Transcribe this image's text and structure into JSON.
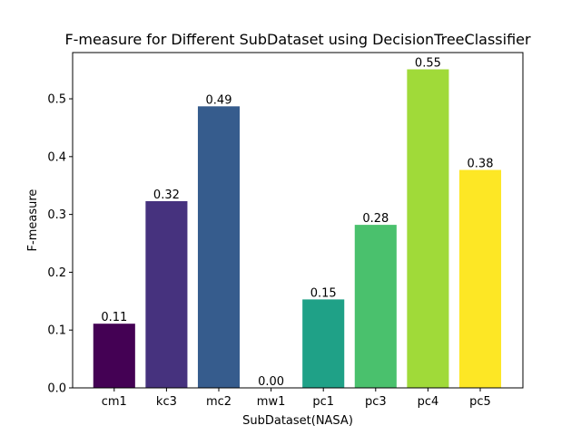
{
  "chart_data": {
    "type": "bar",
    "title": "F-measure for Different SubDataset using DecisionTreeClassifier",
    "xlabel": "SubDataset(NASA)",
    "ylabel": "F-measure",
    "categories": [
      "cm1",
      "kc3",
      "mc2",
      "mw1",
      "pc1",
      "pc3",
      "pc4",
      "pc5"
    ],
    "values": [
      0.111,
      0.323,
      0.487,
      0.0,
      0.153,
      0.282,
      0.551,
      0.377
    ],
    "data_labels": [
      "0.11",
      "0.32",
      "0.49",
      "0.00",
      "0.15",
      "0.28",
      "0.55",
      "0.38"
    ],
    "colors": [
      "#440154",
      "#46327e",
      "#365c8d",
      "#277f8e",
      "#1fa187",
      "#4ac16d",
      "#a0da39",
      "#fde725"
    ],
    "ylim": [
      0,
      0.58
    ],
    "yticks": [
      0.0,
      0.1,
      0.2,
      0.3,
      0.4,
      0.5
    ],
    "ytick_labels": [
      "0.0",
      "0.1",
      "0.2",
      "0.3",
      "0.4",
      "0.5"
    ],
    "grid": false,
    "legend": "none"
  }
}
